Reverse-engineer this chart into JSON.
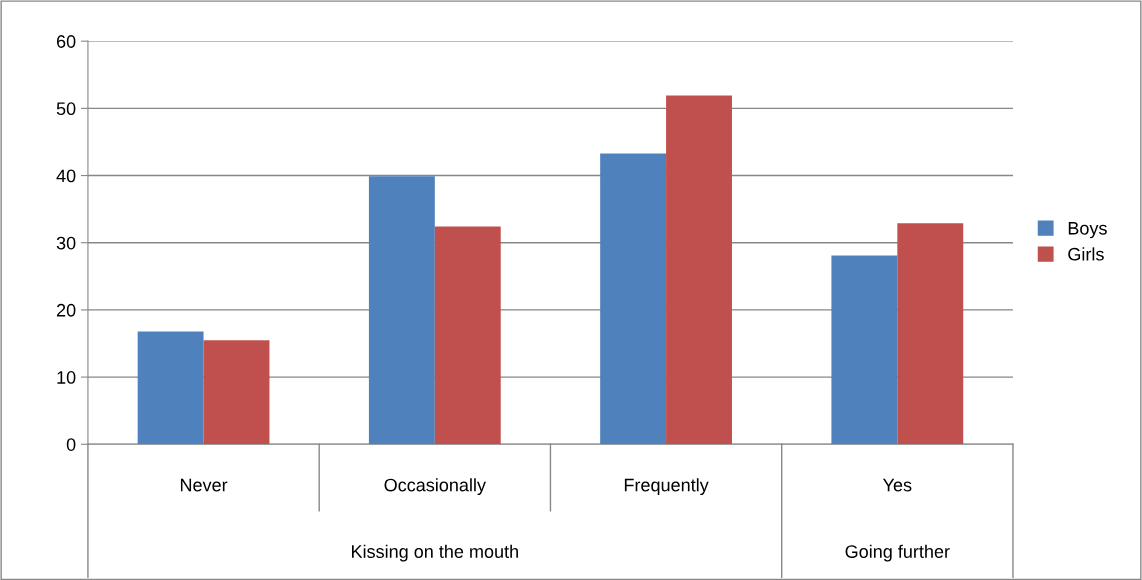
{
  "chart_data": {
    "type": "bar",
    "categories": [
      "Never",
      "Occasionally",
      "Frequently",
      "Yes"
    ],
    "series": [
      {
        "name": "Boys",
        "color": "#4f81bd",
        "values": [
          16.8,
          39.9,
          43.3,
          28.1
        ]
      },
      {
        "name": "Girls",
        "color": "#c0504d",
        "values": [
          15.5,
          32.4,
          51.9,
          32.9
        ]
      }
    ],
    "annotations": [
      "Kissing on the mouth",
      "Going further"
    ],
    "ylim": [
      0,
      60
    ],
    "yticks": [
      0,
      10,
      20,
      30,
      40,
      50,
      60
    ],
    "grid": "y",
    "legend": "right"
  }
}
